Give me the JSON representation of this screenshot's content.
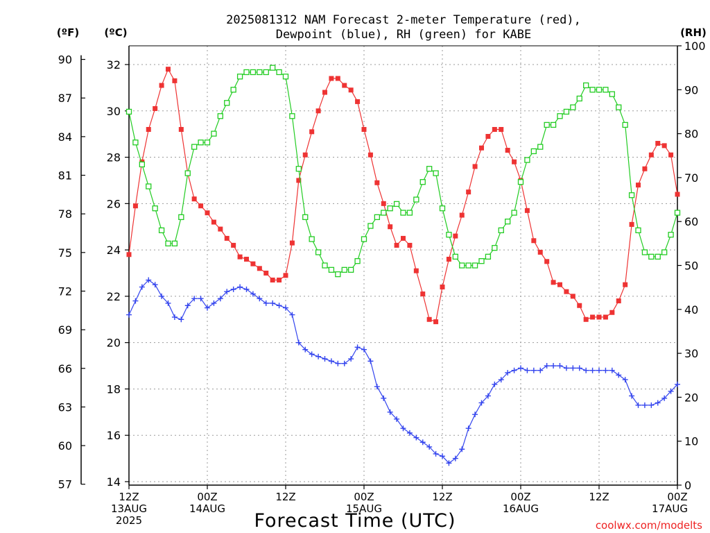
{
  "chart_data": {
    "type": "line",
    "title_line1": "2025081312 NAM Forecast 2-meter Temperature (red),",
    "title_line2": "Dewpoint (blue), RH (green) for KABE",
    "xlabel": "Forecast Time (UTC)",
    "left_axis_f_label": "(ºF)",
    "left_axis_c_label": "(ºC)",
    "right_axis_label": "(RH)",
    "watermark": "coolwx.com/modelts",
    "xlim_hours": [
      0,
      84
    ],
    "ylim_c": [
      14,
      32
    ],
    "ylim_rh": [
      0,
      100
    ],
    "x_ticks": [
      {
        "hour": 0,
        "lines": [
          "12Z",
          "13AUG",
          "2025"
        ]
      },
      {
        "hour": 12,
        "lines": [
          "00Z",
          "14AUG"
        ]
      },
      {
        "hour": 24,
        "lines": [
          "12Z"
        ]
      },
      {
        "hour": 36,
        "lines": [
          "00Z",
          "15AUG"
        ]
      },
      {
        "hour": 48,
        "lines": [
          "12Z"
        ]
      },
      {
        "hour": 60,
        "lines": [
          "00Z",
          "16AUG"
        ]
      },
      {
        "hour": 72,
        "lines": [
          "12Z"
        ]
      },
      {
        "hour": 84,
        "lines": [
          "00Z",
          "17AUG"
        ]
      }
    ],
    "c_ticks": [
      14,
      16,
      18,
      20,
      22,
      24,
      26,
      28,
      30,
      32
    ],
    "f_ticks": [
      57,
      60,
      63,
      66,
      69,
      72,
      75,
      78,
      81,
      84,
      87,
      90
    ],
    "rh_ticks": [
      0,
      10,
      20,
      30,
      40,
      50,
      60,
      70,
      80,
      90,
      100
    ],
    "series": [
      {
        "color": "#ee3333",
        "marker": "filled-square",
        "axis": "celsius",
        "values": [
          [
            0,
            23.8
          ],
          [
            1,
            25.9
          ],
          [
            2,
            27.8
          ],
          [
            3,
            29.2
          ],
          [
            4,
            30.1
          ],
          [
            5,
            31.1
          ],
          [
            6,
            31.8
          ],
          [
            7,
            31.3
          ],
          [
            8,
            29.2
          ],
          [
            9,
            27.3
          ],
          [
            10,
            26.2
          ],
          [
            11,
            25.9
          ],
          [
            12,
            25.6
          ],
          [
            13,
            25.2
          ],
          [
            14,
            24.9
          ],
          [
            15,
            24.5
          ],
          [
            16,
            24.2
          ],
          [
            17,
            23.7
          ],
          [
            18,
            23.6
          ],
          [
            19,
            23.4
          ],
          [
            20,
            23.2
          ],
          [
            21,
            23.0
          ],
          [
            22,
            22.7
          ],
          [
            23,
            22.7
          ],
          [
            24,
            22.9
          ],
          [
            25,
            24.3
          ],
          [
            26,
            27.0
          ],
          [
            27,
            28.1
          ],
          [
            28,
            29.1
          ],
          [
            29,
            30.0
          ],
          [
            30,
            30.8
          ],
          [
            31,
            31.4
          ],
          [
            32,
            31.4
          ],
          [
            33,
            31.1
          ],
          [
            34,
            30.9
          ],
          [
            35,
            30.4
          ],
          [
            36,
            29.2
          ],
          [
            37,
            28.1
          ],
          [
            38,
            26.9
          ],
          [
            39,
            26.0
          ],
          [
            40,
            25.0
          ],
          [
            41,
            24.2
          ],
          [
            42,
            24.5
          ],
          [
            43,
            24.2
          ],
          [
            44,
            23.1
          ],
          [
            45,
            22.1
          ],
          [
            46,
            21.0
          ],
          [
            47,
            20.9
          ],
          [
            48,
            22.4
          ],
          [
            49,
            23.6
          ],
          [
            50,
            24.6
          ],
          [
            51,
            25.5
          ],
          [
            52,
            26.5
          ],
          [
            53,
            27.6
          ],
          [
            54,
            28.4
          ],
          [
            55,
            28.9
          ],
          [
            56,
            29.2
          ],
          [
            57,
            29.2
          ],
          [
            58,
            28.3
          ],
          [
            59,
            27.8
          ],
          [
            60,
            27.0
          ],
          [
            61,
            25.7
          ],
          [
            62,
            24.4
          ],
          [
            63,
            23.9
          ],
          [
            64,
            23.5
          ],
          [
            65,
            22.6
          ],
          [
            66,
            22.5
          ],
          [
            67,
            22.2
          ],
          [
            68,
            22.0
          ],
          [
            69,
            21.6
          ],
          [
            70,
            21.0
          ],
          [
            71,
            21.1
          ],
          [
            72,
            21.1
          ],
          [
            73,
            21.1
          ],
          [
            74,
            21.3
          ],
          [
            75,
            21.8
          ],
          [
            76,
            22.5
          ],
          [
            77,
            25.1
          ],
          [
            78,
            26.8
          ],
          [
            79,
            27.5
          ],
          [
            80,
            28.1
          ],
          [
            81,
            28.6
          ],
          [
            82,
            28.5
          ],
          [
            83,
            28.1
          ],
          [
            84,
            26.4
          ]
        ]
      },
      {
        "color": "#3344ee",
        "marker": "plus",
        "axis": "celsius",
        "values": [
          [
            0,
            21.2
          ],
          [
            1,
            21.8
          ],
          [
            2,
            22.4
          ],
          [
            3,
            22.7
          ],
          [
            4,
            22.5
          ],
          [
            5,
            22.0
          ],
          [
            6,
            21.7
          ],
          [
            7,
            21.1
          ],
          [
            8,
            21.0
          ],
          [
            9,
            21.6
          ],
          [
            10,
            21.9
          ],
          [
            11,
            21.9
          ],
          [
            12,
            21.5
          ],
          [
            13,
            21.7
          ],
          [
            14,
            21.9
          ],
          [
            15,
            22.2
          ],
          [
            16,
            22.3
          ],
          [
            17,
            22.4
          ],
          [
            18,
            22.3
          ],
          [
            19,
            22.1
          ],
          [
            20,
            21.9
          ],
          [
            21,
            21.7
          ],
          [
            22,
            21.7
          ],
          [
            23,
            21.6
          ],
          [
            24,
            21.5
          ],
          [
            25,
            21.2
          ],
          [
            26,
            20.0
          ],
          [
            27,
            19.7
          ],
          [
            28,
            19.5
          ],
          [
            29,
            19.4
          ],
          [
            30,
            19.3
          ],
          [
            31,
            19.2
          ],
          [
            32,
            19.1
          ],
          [
            33,
            19.1
          ],
          [
            34,
            19.3
          ],
          [
            35,
            19.8
          ],
          [
            36,
            19.7
          ],
          [
            37,
            19.2
          ],
          [
            38,
            18.1
          ],
          [
            39,
            17.6
          ],
          [
            40,
            17.0
          ],
          [
            41,
            16.7
          ],
          [
            42,
            16.3
          ],
          [
            43,
            16.1
          ],
          [
            44,
            15.9
          ],
          [
            45,
            15.7
          ],
          [
            46,
            15.5
          ],
          [
            47,
            15.2
          ],
          [
            48,
            15.1
          ],
          [
            49,
            14.8
          ],
          [
            50,
            15.0
          ],
          [
            51,
            15.4
          ],
          [
            52,
            16.3
          ],
          [
            53,
            16.9
          ],
          [
            54,
            17.4
          ],
          [
            55,
            17.7
          ],
          [
            56,
            18.2
          ],
          [
            57,
            18.4
          ],
          [
            58,
            18.7
          ],
          [
            59,
            18.8
          ],
          [
            60,
            18.9
          ],
          [
            61,
            18.8
          ],
          [
            62,
            18.8
          ],
          [
            63,
            18.8
          ],
          [
            64,
            19.0
          ],
          [
            65,
            19.0
          ],
          [
            66,
            19.0
          ],
          [
            67,
            18.9
          ],
          [
            68,
            18.9
          ],
          [
            69,
            18.9
          ],
          [
            70,
            18.8
          ],
          [
            71,
            18.8
          ],
          [
            72,
            18.8
          ],
          [
            73,
            18.8
          ],
          [
            74,
            18.8
          ],
          [
            75,
            18.6
          ],
          [
            76,
            18.4
          ],
          [
            77,
            17.7
          ],
          [
            78,
            17.3
          ],
          [
            79,
            17.3
          ],
          [
            80,
            17.3
          ],
          [
            81,
            17.4
          ],
          [
            82,
            17.6
          ],
          [
            83,
            17.9
          ],
          [
            84,
            18.2
          ]
        ]
      },
      {
        "color": "#22cc22",
        "marker": "open-square",
        "axis": "rh",
        "values": [
          [
            0,
            85
          ],
          [
            1,
            78
          ],
          [
            2,
            73
          ],
          [
            3,
            68
          ],
          [
            4,
            63
          ],
          [
            5,
            58
          ],
          [
            6,
            55
          ],
          [
            7,
            55
          ],
          [
            8,
            61
          ],
          [
            9,
            71
          ],
          [
            10,
            77
          ],
          [
            11,
            78
          ],
          [
            12,
            78
          ],
          [
            13,
            80
          ],
          [
            14,
            84
          ],
          [
            15,
            87
          ],
          [
            16,
            90
          ],
          [
            17,
            93
          ],
          [
            18,
            94
          ],
          [
            19,
            94
          ],
          [
            20,
            94
          ],
          [
            21,
            94
          ],
          [
            22,
            95
          ],
          [
            23,
            94
          ],
          [
            24,
            93
          ],
          [
            25,
            84
          ],
          [
            26,
            72
          ],
          [
            27,
            61
          ],
          [
            28,
            56
          ],
          [
            29,
            53
          ],
          [
            30,
            50
          ],
          [
            31,
            49
          ],
          [
            32,
            48
          ],
          [
            33,
            49
          ],
          [
            34,
            49
          ],
          [
            35,
            51
          ],
          [
            36,
            56
          ],
          [
            37,
            59
          ],
          [
            38,
            61
          ],
          [
            39,
            62
          ],
          [
            40,
            63
          ],
          [
            41,
            64
          ],
          [
            42,
            62
          ],
          [
            43,
            62
          ],
          [
            44,
            65
          ],
          [
            45,
            69
          ],
          [
            46,
            72
          ],
          [
            47,
            71
          ],
          [
            48,
            63
          ],
          [
            49,
            57
          ],
          [
            50,
            52
          ],
          [
            51,
            50
          ],
          [
            52,
            50
          ],
          [
            53,
            50
          ],
          [
            54,
            51
          ],
          [
            55,
            52
          ],
          [
            56,
            54
          ],
          [
            57,
            58
          ],
          [
            58,
            60
          ],
          [
            59,
            62
          ],
          [
            60,
            69
          ],
          [
            61,
            74
          ],
          [
            62,
            76
          ],
          [
            63,
            77
          ],
          [
            64,
            82
          ],
          [
            65,
            82
          ],
          [
            66,
            84
          ],
          [
            67,
            85
          ],
          [
            68,
            86
          ],
          [
            69,
            88
          ],
          [
            70,
            91
          ],
          [
            71,
            90
          ],
          [
            72,
            90
          ],
          [
            73,
            90
          ],
          [
            74,
            89
          ],
          [
            75,
            86
          ],
          [
            76,
            82
          ],
          [
            77,
            66
          ],
          [
            78,
            58
          ],
          [
            79,
            53
          ],
          [
            80,
            52
          ],
          [
            81,
            52
          ],
          [
            82,
            53
          ],
          [
            83,
            57
          ],
          [
            84,
            62
          ]
        ]
      }
    ]
  }
}
